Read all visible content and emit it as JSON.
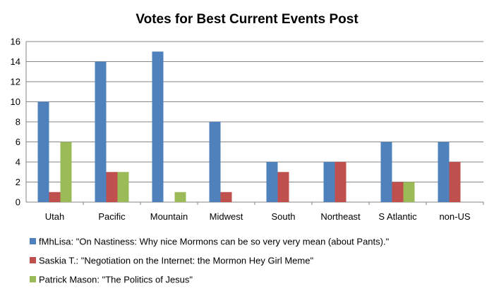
{
  "chart_data": {
    "type": "bar",
    "title": "Votes for Best Current Events Post",
    "xlabel": "",
    "ylabel": "",
    "categories": [
      "Utah",
      "Pacific",
      "Mountain",
      "Midwest",
      "South",
      "Northeast",
      "S Atlantic",
      "non-US"
    ],
    "series": [
      {
        "name": "fMhLisa: \"On Nastiness: Why nice Mormons can be so very very mean (about Pants).\"",
        "color": "#4F81BD",
        "values": [
          10,
          14,
          15,
          8,
          4,
          4,
          6,
          6
        ]
      },
      {
        "name": "Saskia T.: \"Negotiation on the Internet: the Mormon Hey Girl Meme\"",
        "color": "#C0504D",
        "values": [
          1,
          3,
          0,
          1,
          3,
          4,
          2,
          4
        ]
      },
      {
        "name": "Patrick Mason: \"The Politics of Jesus\"",
        "color": "#9BBB59",
        "values": [
          6,
          3,
          1,
          0,
          0,
          0,
          2,
          0
        ]
      }
    ],
    "ylim": [
      0,
      16
    ],
    "yticks": [
      0,
      2,
      4,
      6,
      8,
      10,
      12,
      14,
      16
    ],
    "grid": true,
    "legend_position": "bottom"
  }
}
